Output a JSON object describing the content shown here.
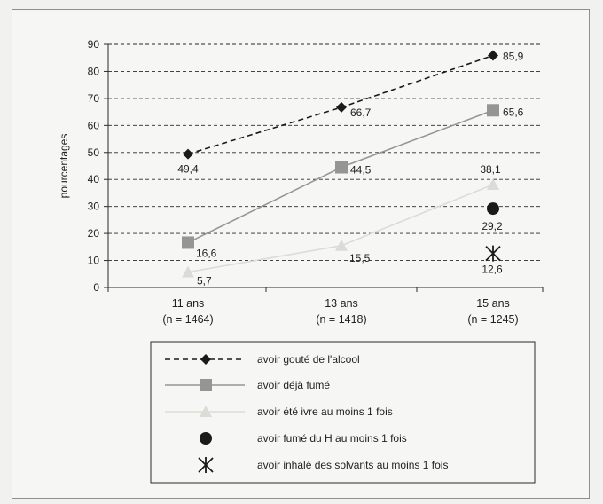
{
  "chart_data": {
    "type": "line",
    "ylabel": "pourcentages",
    "ylim": [
      0,
      90
    ],
    "yticks": [
      0,
      10,
      20,
      30,
      40,
      50,
      60,
      70,
      80,
      90
    ],
    "grid": true,
    "legend_position": "bottom",
    "categories": [
      {
        "age": "11 ans",
        "n": "(n = 1464)"
      },
      {
        "age": "13 ans",
        "n": "(n = 1418)"
      },
      {
        "age": "15 ans",
        "n": "(n = 1245)"
      }
    ],
    "series": [
      {
        "name": "avoir gouté de l'alcool",
        "values": [
          49.4,
          66.7,
          85.9
        ],
        "labels": [
          "49,4",
          "66,7",
          "85,9"
        ],
        "marker": "diamond",
        "line": "dashed",
        "color": "#1a1a1a"
      },
      {
        "name": "avoir déjà fumé",
        "values": [
          16.6,
          44.5,
          65.6
        ],
        "labels": [
          "16,6",
          "44,5",
          "65,6"
        ],
        "marker": "square",
        "line": "solid",
        "color": "#959595"
      },
      {
        "name": "avoir été ivre au moins 1 fois",
        "values": [
          5.7,
          15.5,
          38.1
        ],
        "labels": [
          "5,7",
          "15,5",
          "38,1"
        ],
        "marker": "triangle",
        "line": "solid",
        "color": "#dcdcd6"
      },
      {
        "name": "avoir fumé du H au moins 1 fois",
        "values": [
          null,
          null,
          29.2
        ],
        "labels": [
          "",
          "",
          "29,2"
        ],
        "marker": "circle",
        "line": "none",
        "color": "#1a1a1a"
      },
      {
        "name": "avoir inhalé des solvants au moins 1 fois",
        "values": [
          null,
          null,
          12.6
        ],
        "labels": [
          "",
          "",
          "12,6"
        ],
        "marker": "asterisk",
        "line": "none",
        "color": "#1a1a1a"
      }
    ]
  }
}
